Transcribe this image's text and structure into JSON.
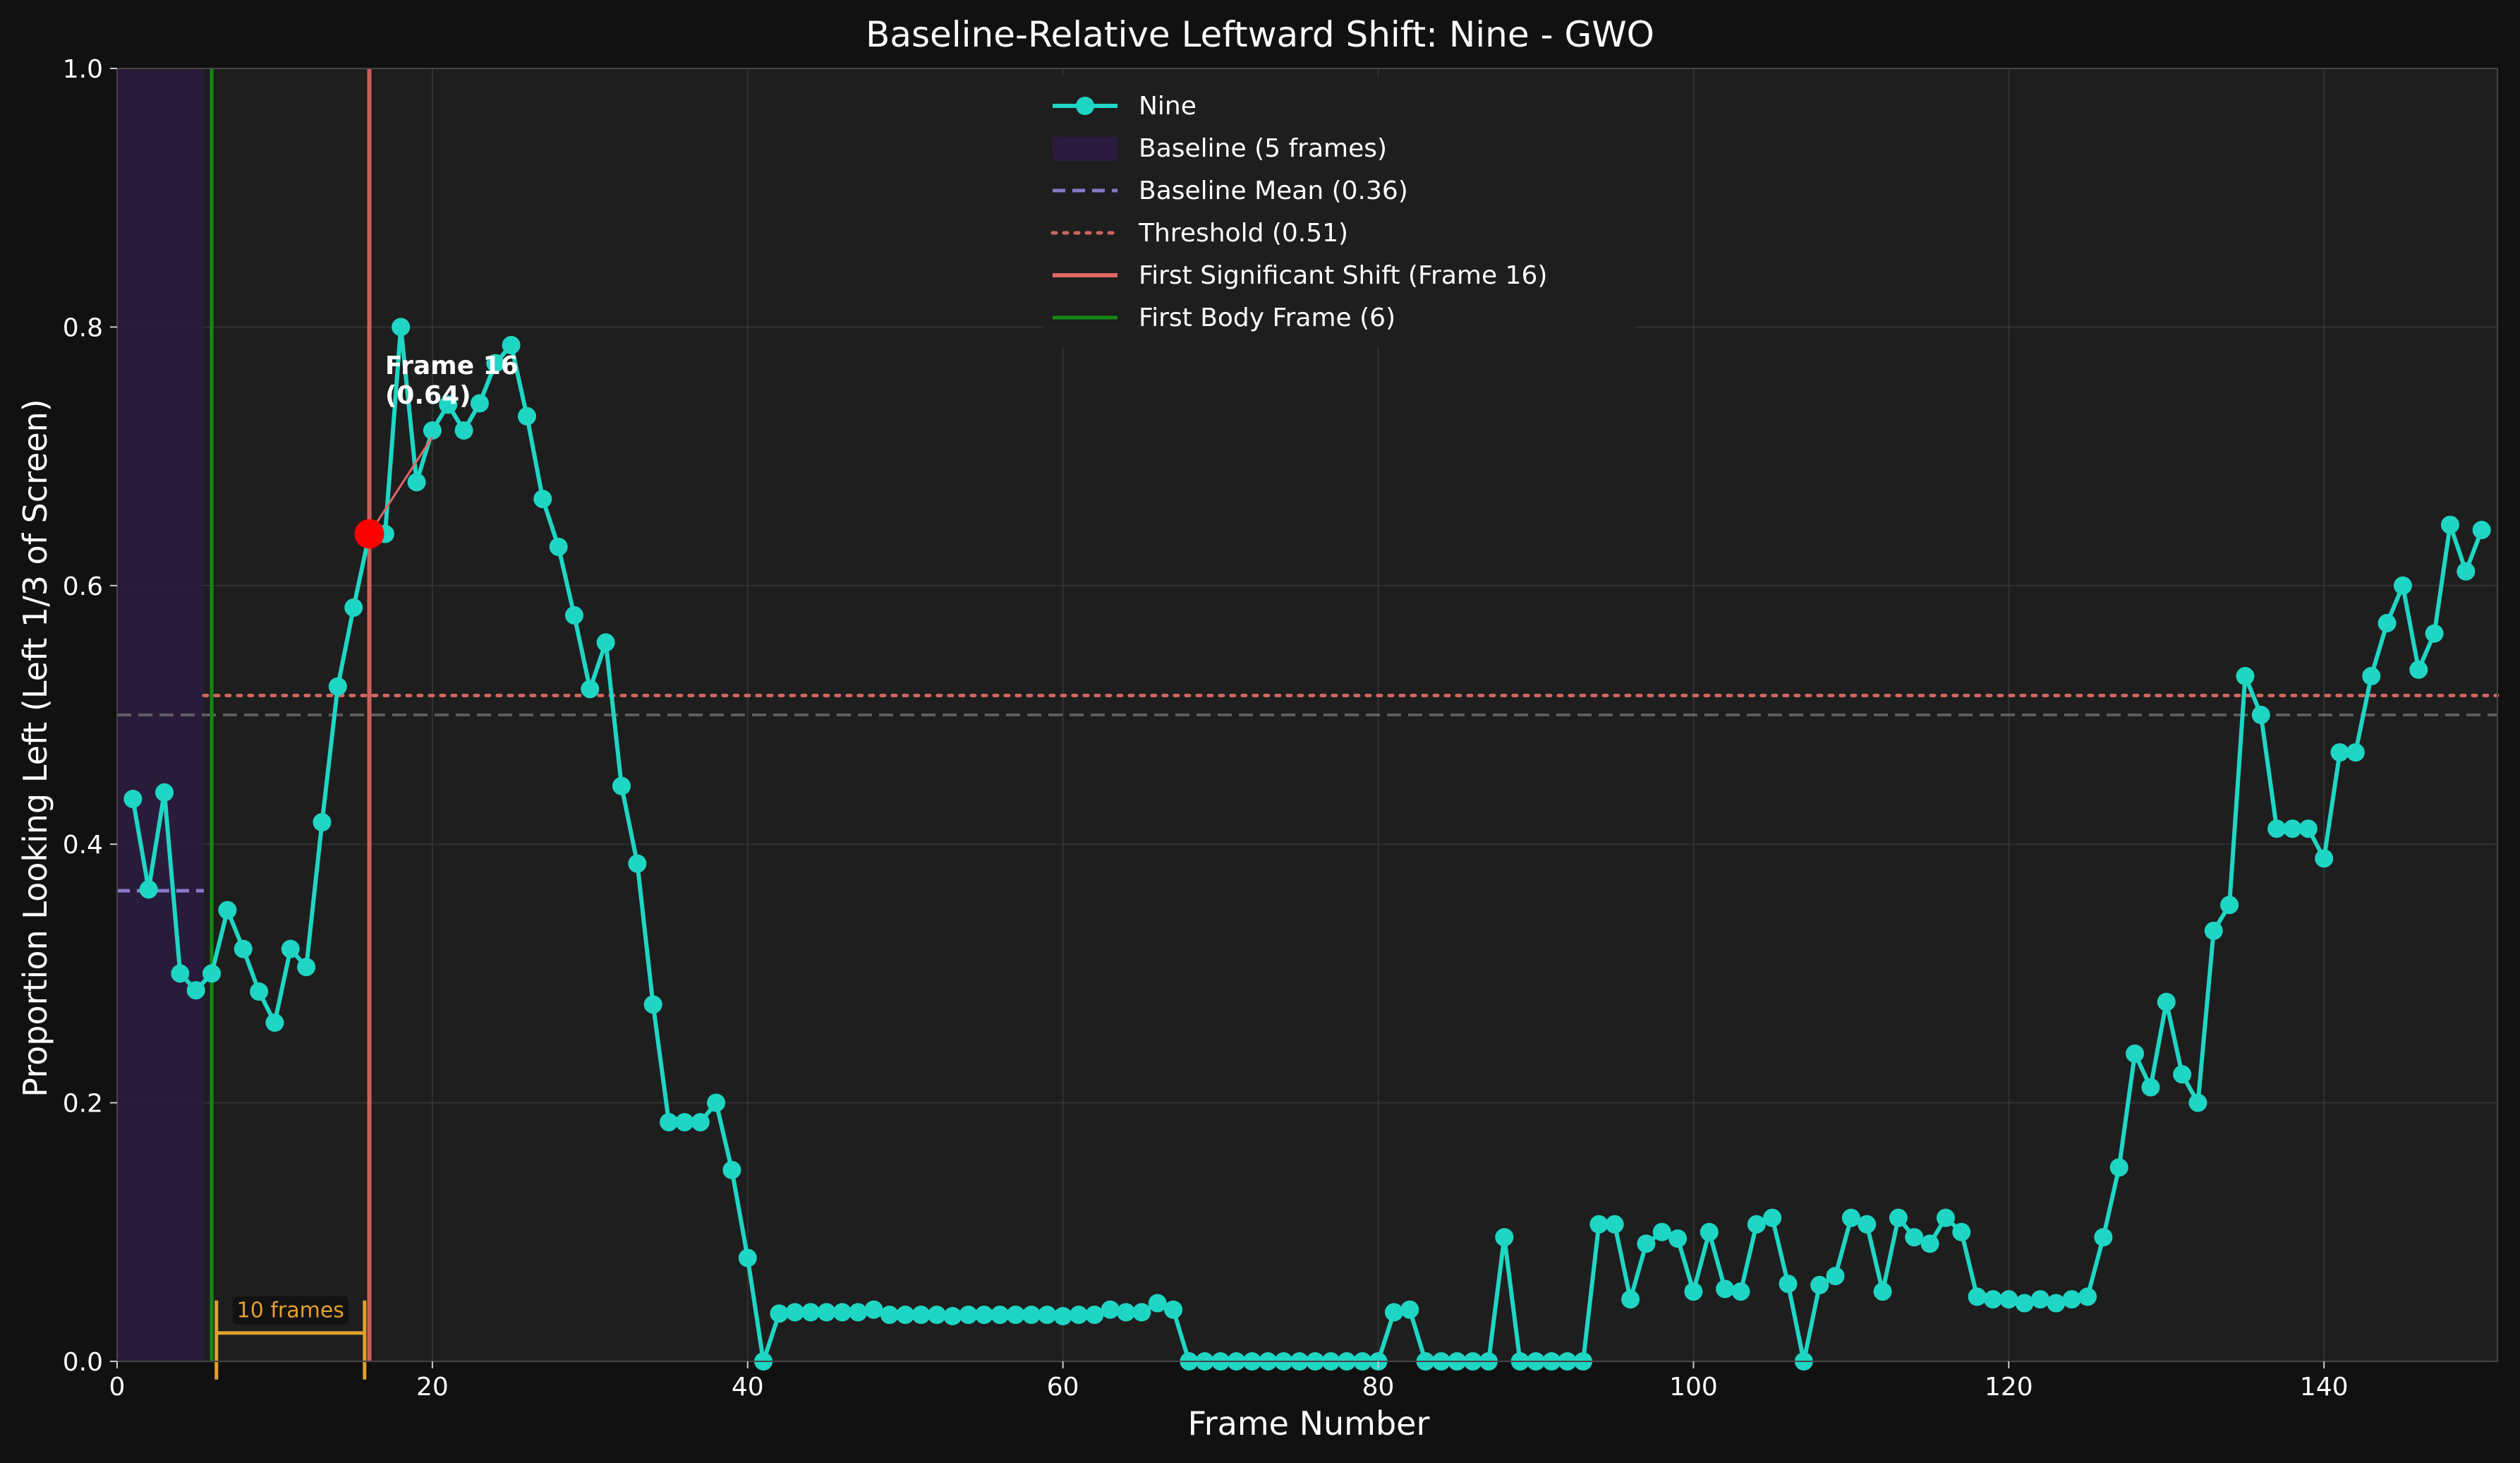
{
  "chart_data": {
    "type": "line",
    "title": "Baseline-Relative Leftward Shift: Nine - GWO",
    "xlabel": "Frame Number",
    "ylabel": "Proportion Looking Left (Left 1/3 of Screen)",
    "xlim": [
      0,
      151
    ],
    "ylim": [
      0,
      1.0
    ],
    "x_ticks": [
      0,
      20,
      40,
      60,
      80,
      100,
      120,
      140
    ],
    "y_ticks": [
      0.0,
      0.2,
      0.4,
      0.6,
      0.8,
      1.0
    ],
    "grid": true,
    "legend_position": "top-center",
    "colors": {
      "series": "#1fd6c4",
      "baseline_region": "#2b1c3f",
      "baseline_mean": "#8878c8",
      "threshold": "#d0665e",
      "first_shift": "#e06666",
      "first_body": "#138a13",
      "marker": "#ff0000",
      "scale_bar": "#e0a030",
      "gray_ref": "#777777"
    },
    "series": [
      {
        "name": "Nine",
        "x": [
          1,
          2,
          3,
          4,
          5,
          6,
          7,
          8,
          9,
          10,
          11,
          12,
          13,
          14,
          15,
          16,
          17,
          18,
          19,
          20,
          21,
          22,
          23,
          24,
          25,
          26,
          27,
          28,
          29,
          30,
          31,
          32,
          33,
          34,
          35,
          36,
          37,
          38,
          39,
          40,
          41,
          42,
          43,
          44,
          45,
          46,
          47,
          48,
          49,
          50,
          51,
          52,
          53,
          54,
          55,
          56,
          57,
          58,
          59,
          60,
          61,
          62,
          63,
          64,
          65,
          66,
          67,
          68,
          69,
          70,
          71,
          72,
          73,
          74,
          75,
          76,
          77,
          78,
          79,
          80,
          81,
          82,
          83,
          84,
          85,
          86,
          87,
          88,
          89,
          90,
          91,
          92,
          93,
          94,
          95,
          96,
          97,
          98,
          99,
          100,
          101,
          102,
          103,
          104,
          105,
          106,
          107,
          108,
          109,
          110,
          111,
          112,
          113,
          114,
          115,
          116,
          117,
          118,
          119,
          120,
          121,
          122,
          123,
          124,
          125,
          126,
          127,
          128,
          129,
          130,
          131,
          132,
          133,
          134,
          135,
          136,
          137,
          138,
          139,
          140,
          141,
          142,
          143,
          144,
          145,
          146,
          147,
          148,
          149,
          150
        ],
        "values": [
          0.435,
          0.365,
          0.44,
          0.3,
          0.287,
          0.3,
          0.349,
          0.319,
          0.286,
          0.262,
          0.319,
          0.305,
          0.417,
          0.522,
          0.583,
          0.64,
          0.64,
          0.8,
          0.68,
          0.72,
          0.74,
          0.72,
          0.741,
          0.772,
          0.786,
          0.731,
          0.667,
          0.63,
          0.577,
          0.52,
          0.556,
          0.445,
          0.385,
          0.276,
          0.185,
          0.185,
          0.185,
          0.2,
          0.148,
          0.08,
          0.0,
          0.037,
          0.038,
          0.038,
          0.038,
          0.038,
          0.038,
          0.04,
          0.036,
          0.036,
          0.036,
          0.036,
          0.035,
          0.036,
          0.036,
          0.036,
          0.036,
          0.036,
          0.036,
          0.035,
          0.036,
          0.036,
          0.04,
          0.038,
          0.038,
          0.045,
          0.04,
          0.0,
          0.0,
          0.0,
          0.0,
          0.0,
          0.0,
          0.0,
          0.0,
          0.0,
          0.0,
          0.0,
          0.0,
          0.0,
          0.038,
          0.04,
          0.0,
          0.0,
          0.0,
          0.0,
          0.0,
          0.096,
          0.0,
          0.0,
          0.0,
          0.0,
          0.0,
          0.106,
          0.106,
          0.048,
          0.091,
          0.1,
          0.095,
          0.054,
          0.1,
          0.056,
          0.054,
          0.106,
          0.111,
          0.06,
          0.0,
          0.059,
          0.066,
          0.111,
          0.106,
          0.054,
          0.111,
          0.096,
          0.091,
          0.111,
          0.1,
          0.05,
          0.048,
          0.048,
          0.045,
          0.048,
          0.045,
          0.048,
          0.05,
          0.096,
          0.15,
          0.238,
          0.212,
          0.278,
          0.222,
          0.2,
          0.333,
          0.353,
          0.53,
          0.5,
          0.412,
          0.412,
          0.412,
          0.389,
          0.471,
          0.471,
          0.53,
          0.571,
          0.6,
          0.535,
          0.563,
          0.647,
          0.611,
          0.643
        ]
      }
    ],
    "baseline_region": {
      "x_start": 0,
      "x_end": 5.5
    },
    "baseline_mean": 0.364,
    "threshold": 0.515,
    "reference_line": 0.5,
    "first_significant_shift_frame": 16,
    "first_significant_shift_value": 0.64,
    "first_body_frame": 6,
    "scale_bar": {
      "x_start": 6.3,
      "x_end": 15.7,
      "y": 0.022,
      "label": "10 frames"
    },
    "legend": [
      {
        "label": "Nine",
        "kind": "line-marker"
      },
      {
        "label": "Baseline (5 frames)",
        "kind": "patch"
      },
      {
        "label": "Baseline Mean (0.36)",
        "kind": "dashed"
      },
      {
        "label": "Threshold (0.51)",
        "kind": "dotted"
      },
      {
        "label": "First Significant Shift (Frame 16)",
        "kind": "solid-shift"
      },
      {
        "label": "First Body Frame (6)",
        "kind": "solid-body"
      }
    ],
    "annotation": {
      "line1": "Frame 16",
      "line2": "(0.64)",
      "text_x": 17,
      "text_y": 0.755
    }
  }
}
